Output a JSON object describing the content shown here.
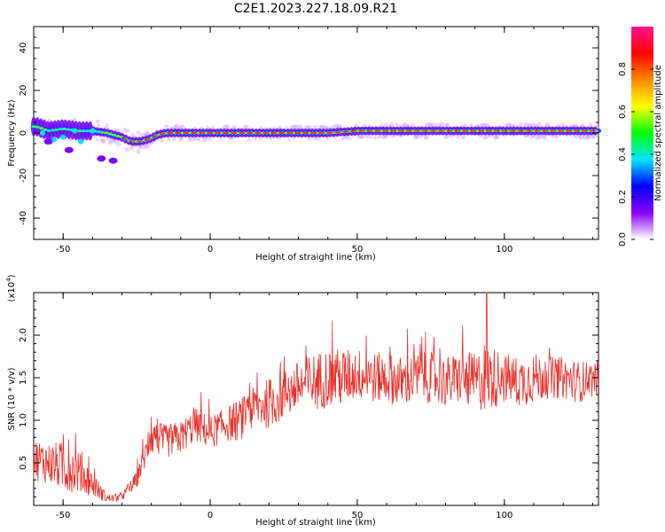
{
  "title": "C2E1.2023.227.18.09.R21",
  "chart_data": [
    {
      "type": "heatmap",
      "xlabel": "Height of straight line (km)",
      "ylabel": "Frequency (Hz)",
      "xlim": [
        -60,
        132
      ],
      "ylim": [
        -50,
        50
      ],
      "xticks": [
        "-50",
        "0",
        "50",
        "100"
      ],
      "xtick_values": [
        -50,
        0,
        50,
        100
      ],
      "yticks": [
        "40",
        "20",
        "0",
        "-20",
        "-40"
      ],
      "ytick_values": [
        40,
        20,
        0,
        -20,
        -40
      ],
      "colorbar": {
        "label": "Normalized spectral amplitude",
        "ticks": [
          "0.0",
          "0.2",
          "0.4",
          "0.6",
          "0.8"
        ],
        "tick_values": [
          0.0,
          0.2,
          0.4,
          0.6,
          0.8
        ],
        "range": [
          0,
          1
        ],
        "colors": [
          "#ffffff",
          "#8a00ff",
          "#0000ff",
          "#00e5ff",
          "#00ff00",
          "#ffff00",
          "#ff8800",
          "#ff0000",
          "#ff1493"
        ]
      },
      "ridge": {
        "x": [
          -59,
          -55,
          -50,
          -45,
          -40,
          -35,
          -30,
          -27,
          -24,
          -21,
          -18,
          -15,
          -10,
          0,
          10,
          20,
          30,
          40,
          50,
          60,
          70,
          80,
          90,
          100,
          110,
          120,
          132
        ],
        "freq": [
          3,
          1,
          2,
          1,
          1,
          0,
          -2,
          -4,
          -4,
          -3,
          -1,
          0,
          0,
          0,
          0,
          0,
          0,
          0,
          1,
          1,
          1,
          1,
          1,
          1,
          1,
          1,
          1
        ]
      },
      "scatter_clusters": [
        {
          "x": -55,
          "freq": -4
        },
        {
          "x": -48,
          "freq": -8
        },
        {
          "x": -37,
          "freq": -12
        },
        {
          "x": -33,
          "freq": -13
        }
      ],
      "grid": false
    },
    {
      "type": "line",
      "xlabel": "Height of straight line (km)",
      "ylabel": "SNR (10 * v/v)",
      "y_multiplier_label": "(x10",
      "y_multiplier_exp": "4",
      "xlim": [
        -60,
        132
      ],
      "ylim": [
        0,
        2.5
      ],
      "xticks": [
        "-50",
        "0",
        "50",
        "100"
      ],
      "xtick_values": [
        -50,
        0,
        50,
        100
      ],
      "yticks": [
        "0.5",
        "1.0",
        "1.5",
        "2.0"
      ],
      "ytick_values": [
        0.5,
        1.0,
        1.5,
        2.0
      ],
      "color": "#e8302a",
      "x": [
        -60,
        -55,
        -50,
        -45,
        -40,
        -35,
        -30,
        -25,
        -20,
        -15,
        -10,
        -5,
        0,
        5,
        10,
        15,
        20,
        25,
        30,
        35,
        40,
        45,
        50,
        55,
        60,
        65,
        70,
        75,
        80,
        85,
        90,
        95,
        100,
        105,
        110,
        115,
        120,
        125,
        132
      ],
      "y": [
        0.55,
        0.5,
        0.45,
        0.4,
        0.25,
        0.08,
        0.1,
        0.3,
        0.8,
        0.75,
        0.8,
        0.95,
        0.85,
        0.95,
        1.0,
        1.15,
        1.2,
        1.3,
        1.4,
        1.45,
        1.5,
        1.5,
        1.55,
        1.5,
        1.5,
        1.45,
        1.5,
        1.5,
        1.45,
        1.5,
        1.45,
        1.5,
        1.5,
        1.45,
        1.5,
        1.5,
        1.5,
        1.45,
        1.5
      ],
      "noise_amplitude": [
        0.25,
        0.25,
        0.3,
        0.25,
        0.15,
        0.05,
        0.05,
        0.1,
        0.2,
        0.2,
        0.2,
        0.2,
        0.2,
        0.2,
        0.25,
        0.25,
        0.3,
        0.3,
        0.3,
        0.35,
        0.35,
        0.35,
        0.3,
        0.3,
        0.3,
        0.3,
        0.3,
        0.3,
        0.3,
        0.3,
        0.35,
        0.4,
        0.3,
        0.3,
        0.3,
        0.25,
        0.25,
        0.25,
        0.2
      ],
      "peak": {
        "x": 94,
        "y": 2.5
      },
      "grid": false
    }
  ]
}
